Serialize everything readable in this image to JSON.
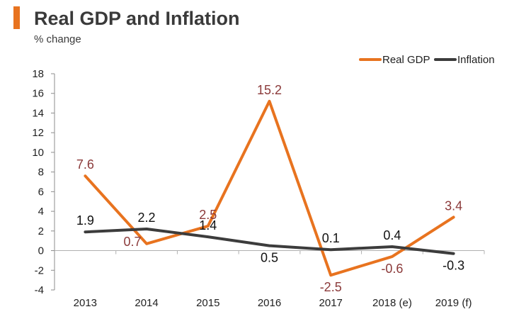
{
  "chart_data": {
    "type": "line",
    "title": "Real GDP and Inflation",
    "subtitle": "% change",
    "xlabel": "",
    "ylabel": "",
    "categories": [
      "2013",
      "2014",
      "2015",
      "2016",
      "2017",
      "2018 (e)",
      "2019 (f)"
    ],
    "ylim": [
      -4,
      18
    ],
    "yticks": [
      -4,
      -2,
      0,
      2,
      4,
      6,
      8,
      10,
      12,
      14,
      16,
      18
    ],
    "grid": false,
    "legend_position": "top-right",
    "series": [
      {
        "name": "Real GDP",
        "color": "#E8731F",
        "label_color": "#8B3A3A",
        "values": [
          7.6,
          0.7,
          2.5,
          15.2,
          -2.5,
          -0.6,
          3.4
        ],
        "labels": [
          "7.6",
          "0.7",
          "2.5",
          "15.2",
          "-2.5",
          "-0.6",
          "3.4"
        ],
        "label_positions": [
          "above",
          "below-left",
          "above",
          "above",
          "below",
          "below",
          "above"
        ]
      },
      {
        "name": "Inflation",
        "color": "#3C3C3C",
        "label_color": "#111111",
        "values": [
          1.9,
          2.2,
          1.4,
          0.5,
          0.1,
          0.4,
          -0.3
        ],
        "labels": [
          "1.9",
          "2.2",
          "1.4",
          "0.5",
          "0.1",
          "0.4",
          "-0.3"
        ],
        "label_positions": [
          "above",
          "above",
          "above",
          "below",
          "above",
          "above",
          "below"
        ]
      }
    ],
    "accent_color": "#E8731F"
  }
}
